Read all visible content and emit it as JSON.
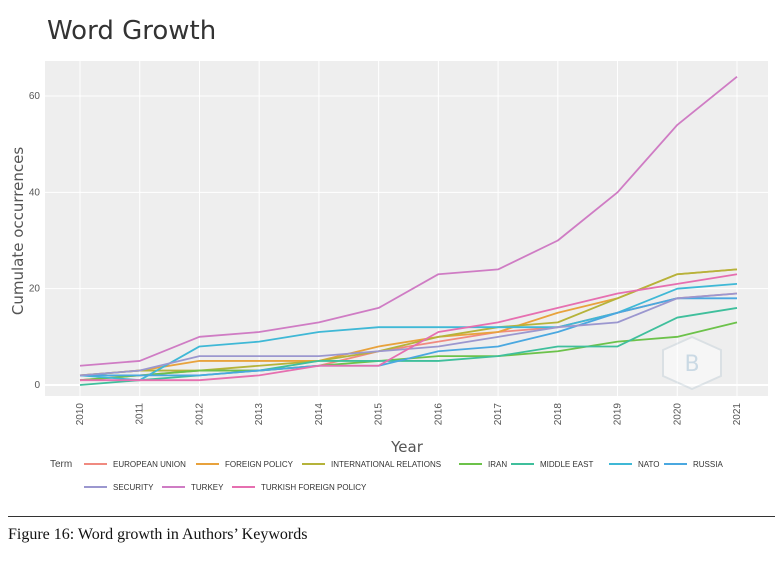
{
  "caption": "Figure 16: Word growth in Authors’ Keywords",
  "chart_data": {
    "type": "line",
    "title": "Word Growth",
    "xlabel": "Year",
    "ylabel": "Cumulate occurrences",
    "x": [
      2010,
      2011,
      2012,
      2013,
      2014,
      2015,
      2016,
      2017,
      2018,
      2019,
      2020,
      2021
    ],
    "ylim": [
      -3,
      67
    ],
    "yticks": [
      0,
      20,
      40,
      60
    ],
    "grid": true,
    "legend_title": "Term",
    "legend_position": "bottom",
    "series": [
      {
        "name": "EUROPEAN UNION",
        "color": "#f08a80",
        "values": [
          1,
          2,
          3,
          3,
          4,
          7,
          9,
          11,
          12,
          15,
          18,
          19
        ]
      },
      {
        "name": "FOREIGN POLICY",
        "color": "#e8a23c",
        "values": [
          2,
          3,
          5,
          5,
          5,
          8,
          10,
          11,
          15,
          18,
          23,
          24
        ]
      },
      {
        "name": "INTERNATIONAL RELATIONS",
        "color": "#b5b33a",
        "values": [
          2,
          3,
          3,
          4,
          5,
          7,
          10,
          12,
          13,
          18,
          23,
          24
        ]
      },
      {
        "name": "IRAN",
        "color": "#6cc24a",
        "values": [
          1,
          2,
          3,
          3,
          4,
          5,
          6,
          6,
          7,
          9,
          10,
          13
        ]
      },
      {
        "name": "MIDDLE EAST",
        "color": "#3fbf9c",
        "values": [
          0,
          1,
          2,
          3,
          5,
          5,
          5,
          6,
          8,
          8,
          14,
          16
        ]
      },
      {
        "name": "NATO",
        "color": "#3fb8d6",
        "values": [
          2,
          1,
          8,
          9,
          11,
          12,
          12,
          12,
          12,
          15,
          20,
          21
        ]
      },
      {
        "name": "RUSSIA",
        "color": "#4aa8e0",
        "values": [
          2,
          2,
          2,
          3,
          4,
          4,
          7,
          8,
          11,
          15,
          18,
          18
        ]
      },
      {
        "name": "SECURITY",
        "color": "#9b97cf",
        "values": [
          2,
          3,
          6,
          6,
          6,
          7,
          8,
          10,
          12,
          13,
          18,
          19
        ]
      },
      {
        "name": "TURKEY",
        "color": "#cf7cc4",
        "values": [
          4,
          5,
          10,
          11,
          13,
          16,
          23,
          24,
          30,
          40,
          54,
          64
        ]
      },
      {
        "name": "TURKISH FOREIGN POLICY",
        "color": "#e66fb0",
        "values": [
          1,
          1,
          1,
          2,
          4,
          4,
          11,
          13,
          16,
          19,
          21,
          23
        ]
      }
    ]
  }
}
